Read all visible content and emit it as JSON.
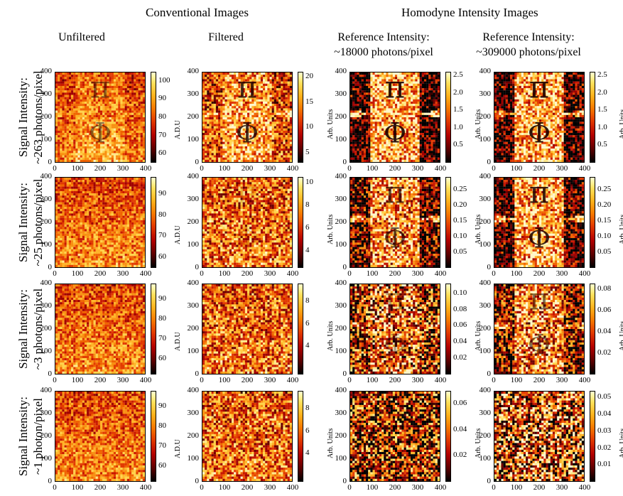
{
  "headers": {
    "conventional": "Conventional Images",
    "homodyne": "Homodyne Intensity Images"
  },
  "columns": [
    [
      "Unfiltered"
    ],
    [
      "Filtered"
    ],
    [
      "Reference Intensity:",
      "~18000 photons/pixel"
    ],
    [
      "Reference Intensity:",
      "~309000 photons/pixel"
    ]
  ],
  "rows": [
    [
      "Signal Intensity:",
      "~263 photons/pixel"
    ],
    [
      "Signal Intensity:",
      "~25 photons/pixel"
    ],
    [
      "Signal Intensity:",
      "~3 photons/pixel"
    ],
    [
      "Signal Intensity:",
      "~1 photon/pixel"
    ]
  ],
  "axis_ticks": [
    "0",
    "100",
    "200",
    "300",
    "400"
  ],
  "colorbar_units": [
    "A.D.U",
    "Arb. Units",
    "Arb. Units",
    "Arb. Units"
  ],
  "colorbars": [
    [
      [
        "100",
        "60",
        "90",
        "80",
        "70"
      ],
      [
        "20",
        "15",
        "10",
        "5"
      ],
      [
        "2.5",
        "2.0",
        "1.5",
        "1.0",
        "0.5"
      ],
      [
        "2.5",
        "2.0",
        "1.5",
        "1.0",
        "0.5"
      ]
    ],
    [
      [
        "90",
        "80",
        "70",
        "60"
      ],
      [
        "10",
        "8",
        "6",
        "4"
      ],
      [
        "0.25",
        "0.20",
        "0.15",
        "0.10",
        "0.05"
      ],
      [
        "0.25",
        "0.20",
        "0.15",
        "0.10",
        "0.05"
      ]
    ],
    [
      [
        "90",
        "80",
        "70",
        "60"
      ],
      [
        "8",
        "6",
        "4"
      ],
      [
        "0.10",
        "0.08",
        "0.06",
        "0.04",
        "0.02"
      ],
      [
        "0.08",
        "0.06",
        "0.04",
        "0.02"
      ]
    ],
    [
      [
        "90",
        "80",
        "70",
        "60"
      ],
      [
        "8",
        "6",
        "4"
      ],
      [
        "0.06",
        "0.04",
        "0.02"
      ],
      [
        "0.05",
        "0.04",
        "0.03",
        "0.02",
        "0.01"
      ]
    ]
  ],
  "colorbar_ranges": [
    [
      [
        55,
        105
      ],
      [
        3,
        21
      ],
      [
        0,
        2.6
      ],
      [
        0,
        2.6
      ]
    ],
    [
      [
        55,
        98
      ],
      [
        2.5,
        10.5
      ],
      [
        0,
        0.29
      ],
      [
        0,
        0.29
      ]
    ],
    [
      [
        52,
        98
      ],
      [
        1.5,
        9.6
      ],
      [
        0,
        0.112
      ],
      [
        0,
        0.085
      ]
    ],
    [
      [
        52,
        98
      ],
      [
        1.5,
        9.6
      ],
      [
        0,
        0.07
      ],
      [
        0,
        0.054
      ]
    ]
  ],
  "image_glyphs": [
    "π",
    "Φ"
  ],
  "panel_visibility": [
    [
      0.55,
      0.9,
      1.0,
      1.0
    ],
    [
      0.0,
      0.12,
      0.75,
      0.95
    ],
    [
      0.0,
      0.0,
      0.35,
      0.6
    ],
    [
      0.0,
      0.0,
      0.0,
      0.08
    ]
  ],
  "colors": {
    "dark": "#000000",
    "hot": "#e03000",
    "bright": "#ffe080"
  }
}
